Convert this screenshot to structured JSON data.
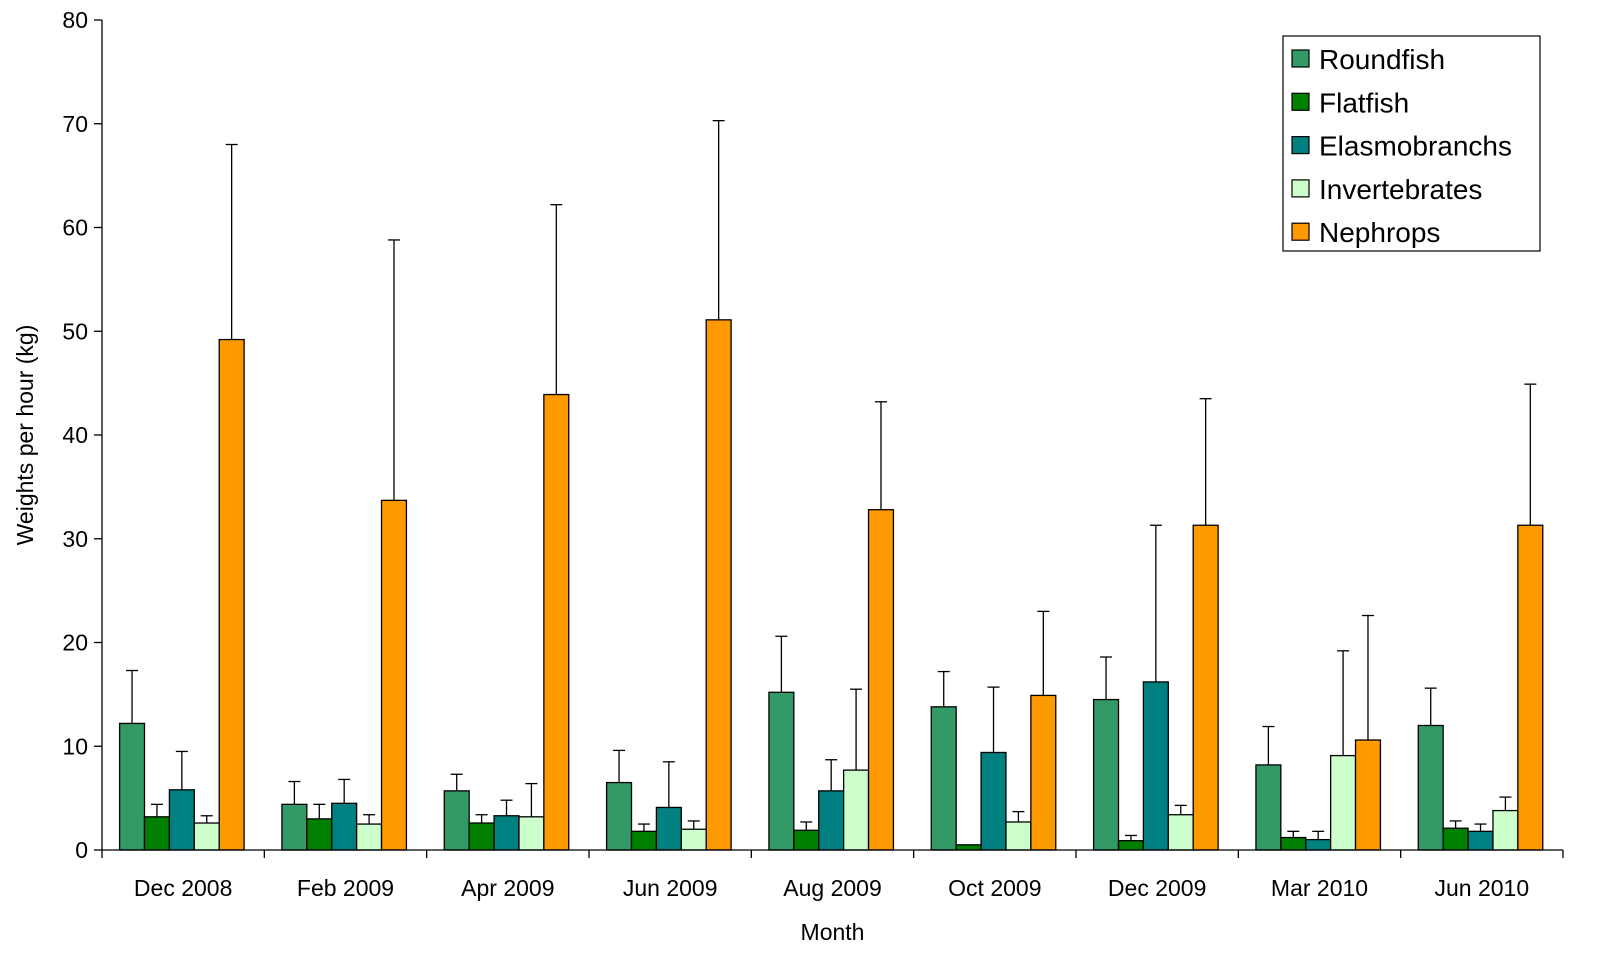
{
  "chart_data": {
    "type": "bar",
    "title": "",
    "xlabel": "Month",
    "ylabel": "Weights per hour (kg)",
    "ylim": [
      0,
      80
    ],
    "yticks": [
      0,
      10,
      20,
      30,
      40,
      50,
      60,
      70,
      80
    ],
    "grid": false,
    "legend_position": "top-right",
    "categories": [
      "Dec 2008",
      "Feb 2009",
      "Apr 2009",
      "Jun 2009",
      "Aug 2009",
      "Oct 2009",
      "Dec 2009",
      "Mar 2010",
      "Jun 2010"
    ],
    "series": [
      {
        "name": "Roundfish",
        "color": "#339966",
        "values": [
          12.2,
          4.4,
          5.7,
          6.5,
          15.2,
          13.8,
          14.5,
          8.2,
          12.0
        ],
        "error_upper": [
          17.3,
          6.6,
          7.3,
          9.6,
          20.6,
          17.2,
          18.6,
          11.9,
          15.6
        ]
      },
      {
        "name": "Flatfish",
        "color": "#008000",
        "values": [
          3.2,
          3.0,
          2.6,
          1.8,
          1.9,
          0.5,
          0.9,
          1.2,
          2.1
        ],
        "error_upper": [
          4.4,
          4.4,
          3.4,
          2.5,
          2.7,
          0.5,
          1.4,
          1.8,
          2.8
        ]
      },
      {
        "name": "Elasmobranchs",
        "color": "#008080",
        "values": [
          5.8,
          4.5,
          3.3,
          4.1,
          5.7,
          9.4,
          16.2,
          1.0,
          1.8
        ],
        "error_upper": [
          9.5,
          6.8,
          4.8,
          8.5,
          8.7,
          15.7,
          31.3,
          1.8,
          2.5
        ]
      },
      {
        "name": "Invertebrates",
        "color": "#CCFFCC",
        "values": [
          2.6,
          2.5,
          3.2,
          2.0,
          7.7,
          2.7,
          3.4,
          9.1,
          3.8
        ],
        "error_upper": [
          3.3,
          3.4,
          6.4,
          2.8,
          15.5,
          3.7,
          4.3,
          19.2,
          5.1
        ]
      },
      {
        "name": "Nephrops",
        "color": "#FF9900",
        "values": [
          49.2,
          33.7,
          43.9,
          51.1,
          32.8,
          14.9,
          31.3,
          10.6,
          31.3
        ],
        "error_upper": [
          68.0,
          58.8,
          62.2,
          70.3,
          43.2,
          23.0,
          43.5,
          22.6,
          44.9
        ]
      }
    ]
  }
}
